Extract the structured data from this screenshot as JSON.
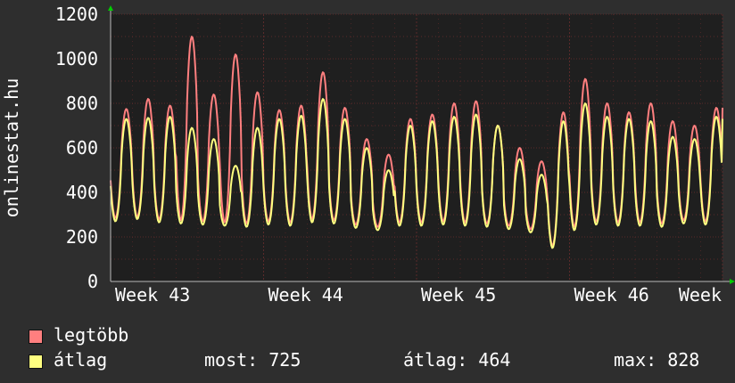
{
  "colors": {
    "background": "#2e2e2e",
    "plot_bg": "#1f1f1f",
    "grid": "#5a2a2a",
    "axis_text": "#ffffff",
    "max_series": "#ff7f7f",
    "avg_series": "#ffff80",
    "arrow": "#00cc00"
  },
  "chart_data": {
    "type": "line",
    "ylabel": "onlinestat.hu",
    "ylim": [
      0,
      1200
    ],
    "yticks": [
      0,
      200,
      400,
      600,
      800,
      1000,
      1200
    ],
    "x_labels": [
      "Week 43",
      "Week 44",
      "Week 45",
      "Week 46",
      "Week"
    ],
    "x_range_days": [
      0,
      28
    ],
    "grid": true,
    "legend_position": "bottom",
    "daily": {
      "avg_high": [
        730,
        735,
        740,
        690,
        640,
        520,
        690,
        730,
        745,
        820,
        730,
        600,
        500,
        700,
        720,
        740,
        750,
        700,
        550,
        480,
        720,
        800,
        740,
        730,
        720,
        650,
        640,
        740,
        730
      ],
      "avg_low": [
        270,
        280,
        265,
        260,
        255,
        250,
        245,
        255,
        250,
        265,
        260,
        240,
        230,
        250,
        250,
        255,
        250,
        245,
        235,
        220,
        150,
        230,
        255,
        250,
        250,
        245,
        260,
        255,
        260
      ],
      "max_high": [
        775,
        820,
        790,
        1100,
        840,
        1020,
        850,
        770,
        790,
        940,
        780,
        640,
        570,
        730,
        750,
        800,
        810,
        700,
        600,
        540,
        760,
        910,
        800,
        760,
        800,
        720,
        700,
        780,
        780
      ],
      "max_low": [
        285,
        290,
        280,
        275,
        270,
        265,
        260,
        270,
        265,
        280,
        275,
        255,
        245,
        265,
        265,
        270,
        265,
        260,
        250,
        235,
        160,
        245,
        270,
        265,
        265,
        260,
        275,
        270,
        275
      ]
    },
    "series": [
      {
        "name": "legtöbb",
        "color": "#ff7f7f"
      },
      {
        "name": "átlag",
        "color": "#ffff80"
      }
    ]
  },
  "legend": {
    "max_label": "legtöbb",
    "avg_label": "átlag",
    "now": "most: 725",
    "average": "átlag: 464",
    "max": "max: 828"
  }
}
